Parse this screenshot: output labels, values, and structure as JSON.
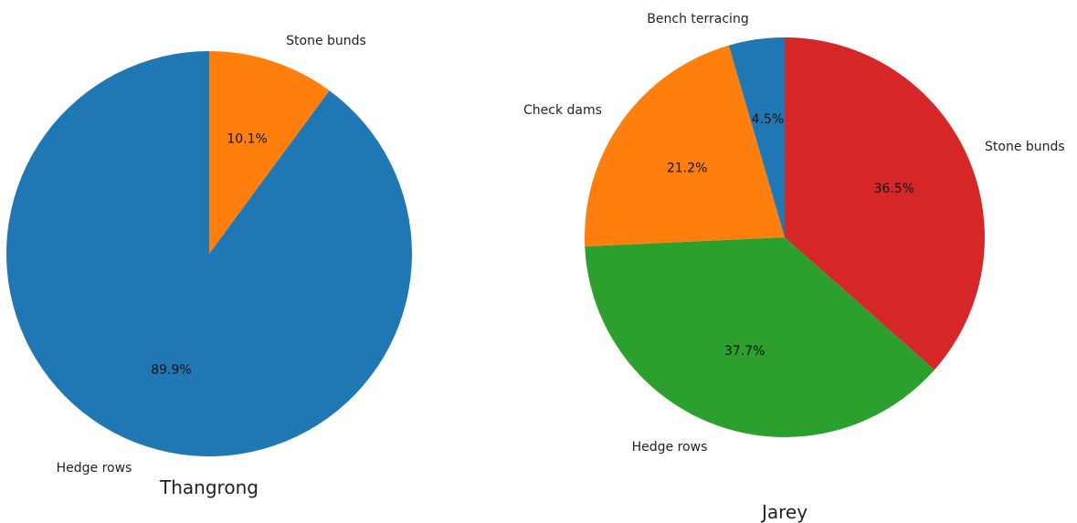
{
  "chart_data": [
    {
      "type": "pie",
      "title": "Thangrong",
      "labels": [
        "Stone bunds",
        "Hedge rows"
      ],
      "values": [
        10.1,
        89.9
      ],
      "pct_labels": [
        "10.1%",
        "89.9%"
      ],
      "colors": [
        "#ff7f0e",
        "#1f77b4"
      ],
      "start": "top",
      "direction": "clockwise"
    },
    {
      "type": "pie",
      "title": "Jarey",
      "labels": [
        "Stone bunds",
        "Hedge rows",
        "Check dams",
        "Bench terracing"
      ],
      "values": [
        36.5,
        37.7,
        21.2,
        4.5
      ],
      "pct_labels": [
        "36.5%",
        "37.7%",
        "21.2%",
        "4.5%"
      ],
      "colors": [
        "#d62728",
        "#2ca02c",
        "#ff7f0e",
        "#1f77b4"
      ],
      "start": "top",
      "direction": "clockwise"
    }
  ]
}
